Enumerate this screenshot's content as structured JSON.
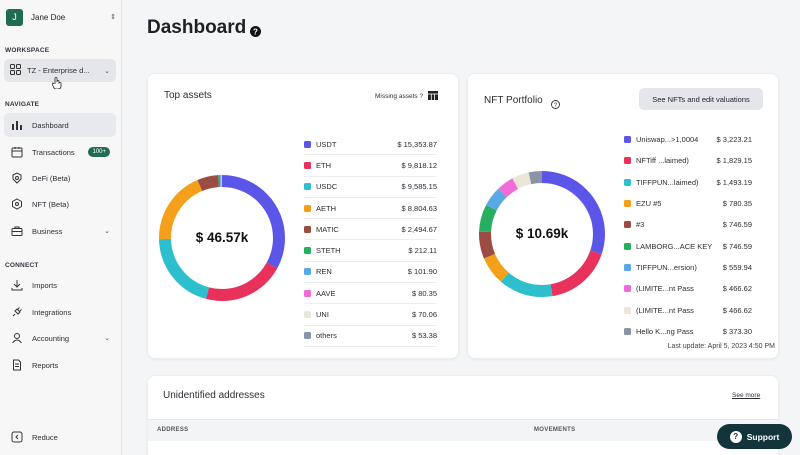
{
  "user": {
    "initial": "J",
    "name": "Jane Doe"
  },
  "sidebar": {
    "workspace_label": "WORKSPACE",
    "workspace_value": "TZ - Enterprise d...",
    "navigate_label": "NAVIGATE",
    "connect_label": "CONNECT",
    "items": [
      {
        "label": "Dashboard",
        "icon": "dashboard-bars-icon"
      },
      {
        "label": "Transactions",
        "icon": "calendar-icon",
        "badge": "100+"
      },
      {
        "label": "DeFi (Beta)",
        "icon": "defi-icon"
      },
      {
        "label": "NFT (Beta)",
        "icon": "nft-icon"
      },
      {
        "label": "Business",
        "icon": "briefcase-icon"
      },
      {
        "label": "Imports",
        "icon": "download-icon"
      },
      {
        "label": "Integrations",
        "icon": "plug-icon"
      },
      {
        "label": "Accounting",
        "icon": "person-icon"
      },
      {
        "label": "Reports",
        "icon": "document-icon"
      }
    ],
    "reduce_label": "Reduce"
  },
  "header": {
    "title": "Dashboard"
  },
  "top_assets": {
    "title": "Top assets",
    "missing_label": "Missing assets ?",
    "total": "$ 46.57k",
    "items": [
      {
        "name": "USDT",
        "value": "$ 15,353.87",
        "color": "#5b55e8"
      },
      {
        "name": "ETH",
        "value": "$ 9,818.12",
        "color": "#e8315b"
      },
      {
        "name": "USDC",
        "value": "$ 9,585.15",
        "color": "#2ebfcf"
      },
      {
        "name": "AETH",
        "value": "$ 8,804.63",
        "color": "#f5a01a"
      },
      {
        "name": "MATIC",
        "value": "$ 2,494.67",
        "color": "#9b4d44"
      },
      {
        "name": "STETH",
        "value": "$ 212.11",
        "color": "#27ae60"
      },
      {
        "name": "REN",
        "value": "$ 101.90",
        "color": "#5aa9e6"
      },
      {
        "name": "AAVE",
        "value": "$ 80.35",
        "color": "#f06ad9"
      },
      {
        "name": "UNI",
        "value": "$ 70.06",
        "color": "#ece6d6"
      },
      {
        "name": "others",
        "value": "$ 53.38",
        "color": "#8a94a6"
      }
    ]
  },
  "nft": {
    "title": "NFT Portfolio",
    "button_label": "See NFTs and edit valuations",
    "total": "$ 10.69k",
    "last_update": "Last update: April 5, 2023 4:50 PM",
    "items": [
      {
        "name": "Uniswap...>1,0004",
        "value": "$ 3,223.21",
        "color": "#5b55e8"
      },
      {
        "name": "NFTiff ...laimed)",
        "value": "$ 1,829.15",
        "color": "#e8315b"
      },
      {
        "name": "TIFFPUN...laimed)",
        "value": "$ 1,493.19",
        "color": "#2ebfcf"
      },
      {
        "name": "EZU #5",
        "value": "$ 780.35",
        "color": "#f5a01a"
      },
      {
        "name": "#3",
        "value": "$ 746.59",
        "color": "#9b4d44"
      },
      {
        "name": "LAMBORG...ACE KEY",
        "value": "$ 746.59",
        "color": "#27ae60"
      },
      {
        "name": "TIFFPUN...ersion)",
        "value": "$ 559.94",
        "color": "#5aa9e6"
      },
      {
        "name": "(LIMITE...nt Pass",
        "value": "$ 466.62",
        "color": "#f06ad9"
      },
      {
        "name": "(LIMITE...nt Pass",
        "value": "$ 466.62",
        "color": "#ece6d6"
      },
      {
        "name": "Hello K...ng Pass",
        "value": "$ 373.30",
        "color": "#8a94a6"
      }
    ]
  },
  "unidentified": {
    "title": "Unidentified addresses",
    "see_more": "See more",
    "columns": [
      "ADDRESS",
      "MOVEMENTS"
    ]
  },
  "support": {
    "label": "Support"
  }
}
